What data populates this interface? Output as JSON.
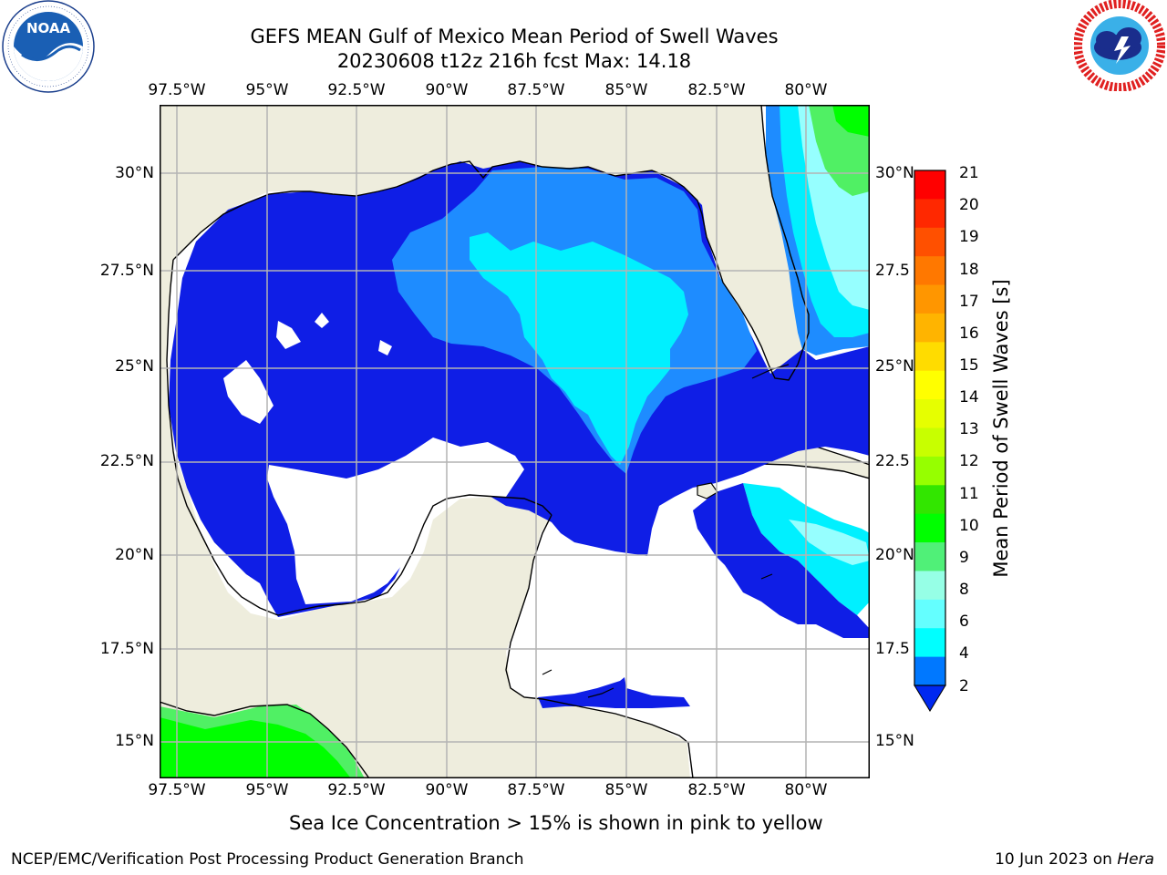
{
  "header": {
    "title_line1": "GEFS MEAN Gulf of Mexico Mean Period of Swell Waves",
    "title_line2": "20230608 t12z 216h fcst   Max: 14.18"
  },
  "logos": {
    "noara_text": "NOAA",
    "noaa_ring_text": "NATIONAL OCEANIC AND ATMOSPHERIC ADMINISTRATION · U.S. DEPARTMENT OF COMMERCE",
    "nws_ring_text": "NATIONAL WEATHER SERVICE"
  },
  "axes": {
    "lon_labels": [
      "97.5°W",
      "95°W",
      "92.5°W",
      "90°W",
      "87.5°W",
      "85°W",
      "82.5°W",
      "80°W"
    ],
    "lat_labels_left": [
      "30°N",
      "27.5°N",
      "25°N",
      "22.5°N",
      "20°N",
      "17.5°N",
      "15°N"
    ],
    "lat_labels_right": [
      "30°N",
      "27.5",
      "25°N",
      "22.5",
      "20°N",
      "17.5",
      "15°N"
    ]
  },
  "colorbar": {
    "label": "Mean Period of Swell Waves [s]",
    "ticks": [
      "21",
      "20",
      "19",
      "18",
      "17",
      "16",
      "15",
      "14",
      "13",
      "12",
      "11",
      "10",
      "9",
      "8",
      "6",
      "4",
      "2"
    ],
    "colors": [
      "#ff0000",
      "#ff2800",
      "#ff5000",
      "#ff7800",
      "#ff9600",
      "#ffb400",
      "#ffdc00",
      "#ffff00",
      "#e6ff00",
      "#c8ff00",
      "#96ff00",
      "#32e600",
      "#00ff00",
      "#50f078",
      "#96ffe6",
      "#64ffff",
      "#00ffff",
      "#0078ff"
    ],
    "under_color": "#0028f0"
  },
  "colors": {
    "land": "#eeeddd",
    "ocean_missing": "#ffffff",
    "period_2_4": "#0f1ee6",
    "period_4_6": "#1e8cff",
    "period_6_8": "#00f0ff",
    "period_8_9": "#96ffff",
    "period_9_10": "#50f064",
    "period_10_11": "#00ff00",
    "grid": "#b4b4b4"
  },
  "footer": {
    "sea_ice_note": "Sea Ice Concentration > 15% is shown in pink to yellow",
    "branch": "NCEP/EMC/Verification Post Processing Product Generation Branch",
    "date": "10 Jun 2023 on ",
    "machine": "Hera"
  }
}
